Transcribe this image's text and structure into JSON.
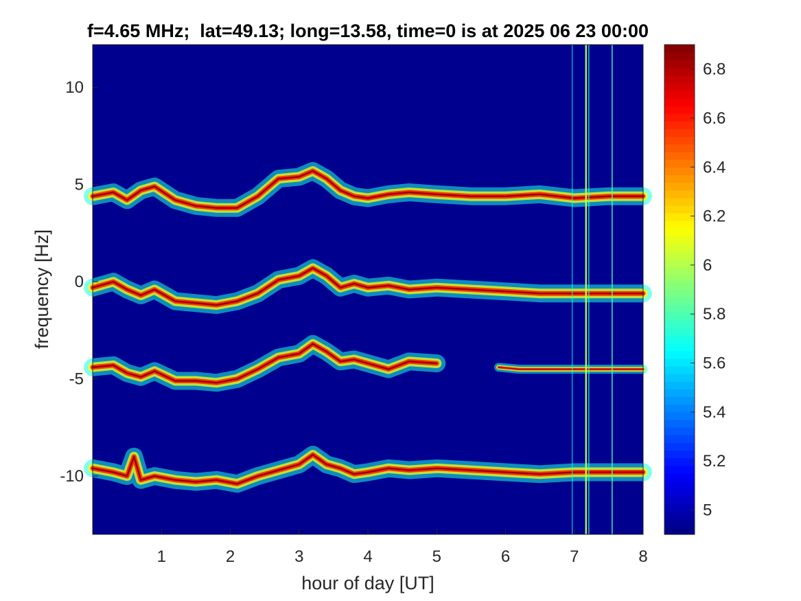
{
  "chart_data": {
    "type": "heatmap",
    "title": "f=4.65 MHz;  lat=49.13; long=13.58, time=0 is at 2025 06 23 00:00",
    "xlabel": "hour of day [UT]",
    "ylabel": "frequency [Hz]",
    "xlim": [
      0,
      8
    ],
    "ylim": [
      -13,
      12.2
    ],
    "xticks": [
      1,
      2,
      3,
      4,
      5,
      6,
      7,
      8
    ],
    "xtick_labels": [
      "1",
      "2",
      "3",
      "4",
      "5",
      "6",
      "7",
      "8"
    ],
    "yticks": [
      10,
      5,
      0,
      -5,
      -10
    ],
    "ytick_labels": [
      "10",
      "5",
      "0",
      "-5",
      "-10"
    ],
    "colormap": "jet",
    "background_color": "#00008f",
    "colorbar": {
      "range": [
        4.9,
        6.9
      ],
      "ticks": [
        4.9,
        5.0,
        5.2,
        5.4,
        5.6,
        5.8,
        6.0,
        6.2,
        6.4,
        6.6,
        6.8
      ],
      "tick_labels": [
        "",
        "5",
        "5.2",
        "5.4",
        "5.6",
        "5.8",
        "6",
        "6.2",
        "6.4",
        "6.6",
        "6.8"
      ]
    },
    "traces": [
      {
        "name": "",
        "x": [
          0,
          0.3,
          0.5,
          0.7,
          0.9,
          1.2,
          1.5,
          1.8,
          2.1,
          2.4,
          2.7,
          3.0,
          3.2,
          3.4,
          3.6,
          3.8,
          4.0,
          4.3,
          4.6,
          5.0,
          5.5,
          6.0,
          6.5,
          7.0,
          7.5,
          8.0
        ],
        "y": [
          4.4,
          4.6,
          4.2,
          4.7,
          4.9,
          4.2,
          3.9,
          3.8,
          3.8,
          4.4,
          5.3,
          5.4,
          5.7,
          5.3,
          4.7,
          4.4,
          4.3,
          4.5,
          4.6,
          4.5,
          4.4,
          4.4,
          4.5,
          4.3,
          4.4,
          4.4
        ]
      },
      {
        "name": "",
        "x": [
          0,
          0.3,
          0.5,
          0.7,
          0.9,
          1.2,
          1.5,
          1.8,
          2.1,
          2.4,
          2.7,
          3.0,
          3.2,
          3.4,
          3.6,
          3.8,
          4.0,
          4.3,
          4.6,
          5.0,
          5.5,
          6.0,
          6.5,
          7.0,
          7.5,
          8.0
        ],
        "y": [
          -0.3,
          0.0,
          -0.4,
          -0.7,
          -0.4,
          -1.0,
          -1.1,
          -1.2,
          -1.0,
          -0.6,
          0.1,
          0.3,
          0.7,
          0.3,
          -0.3,
          -0.1,
          -0.3,
          -0.2,
          -0.4,
          -0.3,
          -0.4,
          -0.5,
          -0.6,
          -0.6,
          -0.6,
          -0.6
        ]
      },
      {
        "name": "",
        "x": [
          0,
          0.3,
          0.5,
          0.7,
          0.9,
          1.2,
          1.5,
          1.8,
          2.1,
          2.4,
          2.7,
          3.0,
          3.2,
          3.4,
          3.6,
          3.8,
          4.0,
          4.3,
          4.6,
          5.0
        ],
        "y": [
          -4.4,
          -4.3,
          -4.7,
          -4.9,
          -4.6,
          -5.1,
          -5.1,
          -5.2,
          -5.0,
          -4.5,
          -3.9,
          -3.7,
          -3.2,
          -3.6,
          -4.1,
          -4.0,
          -4.2,
          -4.5,
          -4.1,
          -4.2
        ]
      },
      {
        "name": "",
        "x": [
          5.9,
          6.2,
          6.5,
          7.0,
          7.5,
          8.0
        ],
        "y": [
          -4.4,
          -4.5,
          -4.5,
          -4.5,
          -4.5,
          -4.5
        ]
      },
      {
        "name": "",
        "x": [
          0,
          0.3,
          0.5,
          0.6,
          0.7,
          0.9,
          1.2,
          1.5,
          1.8,
          2.1,
          2.4,
          2.7,
          3.0,
          3.2,
          3.4,
          3.6,
          3.8,
          4.0,
          4.3,
          4.6,
          5.0,
          5.5,
          6.0,
          6.5,
          7.0,
          7.5,
          8.0
        ],
        "y": [
          -9.6,
          -9.8,
          -10.0,
          -9.0,
          -10.2,
          -10.0,
          -10.2,
          -10.3,
          -10.2,
          -10.4,
          -10.0,
          -9.7,
          -9.4,
          -8.9,
          -9.4,
          -9.6,
          -9.9,
          -9.8,
          -9.6,
          -9.7,
          -9.6,
          -9.7,
          -9.8,
          -9.9,
          -9.8,
          -9.8,
          -9.8
        ]
      }
    ],
    "vertical_streaks": [
      {
        "x": 6.97,
        "strength": 0.3
      },
      {
        "x": 7.17,
        "strength": 1.0
      },
      {
        "x": 7.21,
        "strength": 0.45
      },
      {
        "x": 7.55,
        "strength": 0.55
      }
    ]
  }
}
